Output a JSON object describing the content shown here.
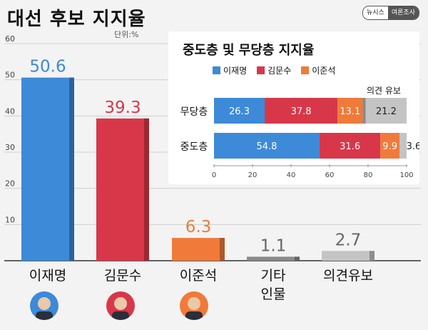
{
  "title": "대선 후보 지지율",
  "unit_label": "단위:%",
  "source_badge": [
    "뉴시스",
    "여론조사"
  ],
  "colors": {
    "lee": "#3d8ad8",
    "kim": "#d8374a",
    "ljs": "#f07a3a",
    "other": "#8a8a8a",
    "undecided": "#c4c4c4"
  },
  "inset": {
    "title": "중도층 및 무당층 지지율",
    "undecided_label": "의견 유보"
  },
  "chart_data": [
    {
      "type": "bar",
      "categories": [
        "이재명",
        "김문수",
        "이준석",
        "기타 인물",
        "의견유보"
      ],
      "category_lines": [
        [
          "이재명"
        ],
        [
          "김문수"
        ],
        [
          "이준석"
        ],
        [
          "기타",
          "인물"
        ],
        [
          "의견유보"
        ]
      ],
      "values": [
        50.6,
        39.3,
        6.3,
        1.1,
        2.7
      ],
      "value_labels": [
        "50.6",
        "39.3",
        "6.3",
        "1.1",
        "2.7"
      ],
      "ylim": [
        0,
        60
      ],
      "yticks": [
        10,
        20,
        30,
        40,
        50,
        60
      ],
      "title": "대선 후보 지지율",
      "ylabel": "단위:%"
    },
    {
      "type": "bar",
      "orientation": "horizontal",
      "stacked": true,
      "title": "중도층 및 무당층 지지율",
      "categories": [
        "무당층",
        "중도층"
      ],
      "series": [
        {
          "name": "이재명",
          "values": [
            26.3,
            54.8
          ]
        },
        {
          "name": "김문수",
          "values": [
            37.8,
            31.6
          ]
        },
        {
          "name": "이준석",
          "values": [
            13.1,
            9.9
          ]
        },
        {
          "values": [
            1.6,
            0.1
          ]
        },
        {
          "values": [
            21.2,
            3.6
          ]
        }
      ],
      "xlim": [
        0,
        100
      ],
      "xticks": [
        0,
        20,
        40,
        60,
        80,
        100
      ],
      "annotations": [
        "의견 유보"
      ]
    }
  ]
}
